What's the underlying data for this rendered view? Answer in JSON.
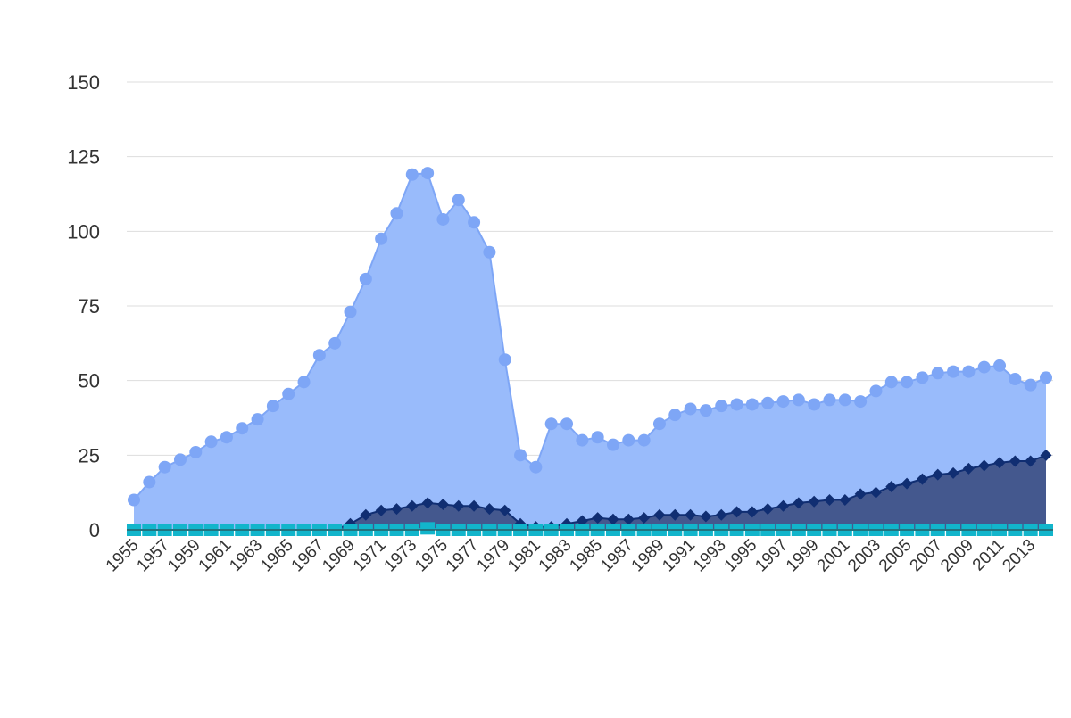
{
  "chart_data": {
    "type": "area",
    "title": "",
    "xlabel": "",
    "ylabel": "",
    "ylim": [
      0,
      150
    ],
    "yticks": [
      0,
      25,
      50,
      75,
      100,
      125,
      150
    ],
    "grid": true,
    "legend": "none",
    "x": [
      1955,
      1956,
      1957,
      1958,
      1959,
      1960,
      1961,
      1962,
      1963,
      1964,
      1965,
      1966,
      1967,
      1968,
      1969,
      1970,
      1971,
      1972,
      1973,
      1974,
      1975,
      1976,
      1977,
      1978,
      1979,
      1980,
      1981,
      1982,
      1983,
      1984,
      1985,
      1986,
      1987,
      1988,
      1989,
      1990,
      1991,
      1992,
      1993,
      1994,
      1995,
      1996,
      1997,
      1998,
      1999,
      2000,
      2001,
      2002,
      2003,
      2004,
      2005,
      2006,
      2007,
      2008,
      2009,
      2010,
      2011,
      2012,
      2013,
      2014
    ],
    "xtick_labels": [
      "1955",
      "1957",
      "1959",
      "1961",
      "1963",
      "1965",
      "1967",
      "1969",
      "1971",
      "1973",
      "1975",
      "1977",
      "1979",
      "1981",
      "1983",
      "1985",
      "1987",
      "1989",
      "1991",
      "1993",
      "1995",
      "1997",
      "1999",
      "2001",
      "2003",
      "2005",
      "2007",
      "2009",
      "2011",
      "2013"
    ],
    "series": [
      {
        "color": "#7ea6f6",
        "fill": "#99bbfb",
        "marker": "circle",
        "values": [
          10,
          16,
          21,
          23.5,
          26,
          29.5,
          31,
          34,
          37,
          41.5,
          45.5,
          49.5,
          58.5,
          62.5,
          73,
          84,
          97.5,
          106,
          119,
          119.5,
          104,
          110.5,
          103,
          93,
          57,
          25,
          21,
          35.5,
          35.5,
          30,
          31,
          28.5,
          30,
          30,
          35.5,
          38.5,
          40.5,
          40,
          41.5,
          42,
          42,
          42.5,
          43,
          43.5,
          42,
          43.5,
          43.5,
          43,
          46.5,
          49.5,
          49.5,
          51,
          52.5,
          53,
          53,
          54.5,
          55,
          50.5,
          48.5,
          51
        ]
      },
      {
        "color": "#102e72",
        "fill": "#3f5288",
        "marker": "diamond",
        "values": [
          0,
          0,
          0,
          0,
          0,
          0,
          0,
          0,
          0,
          0,
          0,
          0,
          0,
          0,
          2,
          5,
          6.5,
          7,
          8,
          9,
          8.5,
          8,
          8,
          7,
          6.5,
          2,
          1,
          1,
          2,
          3,
          4,
          3.5,
          3.5,
          4,
          5,
          5,
          5,
          4.5,
          5,
          6,
          6,
          7,
          8,
          9,
          9.5,
          10,
          10,
          12,
          12.5,
          14.5,
          15.5,
          17,
          18.5,
          19,
          20.5,
          21.5,
          22.5,
          23,
          23,
          25
        ]
      },
      {
        "color": "#12b5cb",
        "fill": "#12b5cb",
        "marker": "square",
        "values": [
          0,
          0,
          0,
          0,
          0,
          0,
          0,
          0,
          0,
          0,
          0,
          0,
          0,
          0,
          0,
          0,
          0,
          0,
          0,
          0.5,
          0,
          0,
          0,
          0,
          0,
          0,
          0,
          0,
          0,
          0,
          0,
          0,
          0,
          0,
          0,
          0,
          0,
          0,
          0,
          0,
          0,
          0,
          0,
          0,
          0,
          0,
          0,
          0,
          0,
          0,
          0,
          0,
          0,
          0,
          0,
          0,
          0,
          0,
          0,
          0
        ]
      }
    ]
  }
}
